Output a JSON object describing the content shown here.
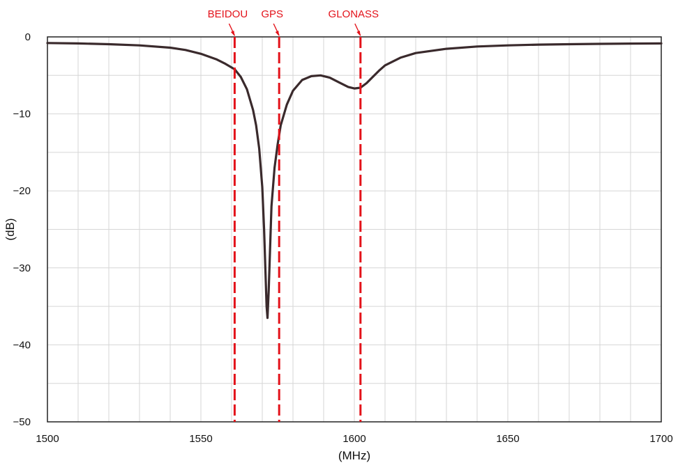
{
  "chart_data": {
    "type": "line",
    "title": "",
    "xlabel": "(MHz)",
    "ylabel": "(dB)",
    "xlim": [
      1500,
      1700
    ],
    "ylim": [
      -50,
      0
    ],
    "grid": true,
    "x_ticks": [
      {
        "value": 1500,
        "label": "1500"
      },
      {
        "value": 1550,
        "label": "1550"
      },
      {
        "value": 1600,
        "label": "1600"
      },
      {
        "value": 1650,
        "label": "1650"
      },
      {
        "value": 1700,
        "label": "1700"
      }
    ],
    "y_ticks": [
      {
        "value": 0,
        "label": "0"
      },
      {
        "value": -10,
        "label": "−10"
      },
      {
        "value": -20,
        "label": "−20"
      },
      {
        "value": -30,
        "label": "−30"
      },
      {
        "value": -40,
        "label": "−40"
      },
      {
        "value": -50,
        "label": "−50"
      }
    ],
    "series": [
      {
        "color": "#3a2a2c",
        "points": [
          [
            1500,
            -0.8
          ],
          [
            1510,
            -0.85
          ],
          [
            1520,
            -0.95
          ],
          [
            1530,
            -1.1
          ],
          [
            1540,
            -1.4
          ],
          [
            1545,
            -1.7
          ],
          [
            1550,
            -2.2
          ],
          [
            1555,
            -2.9
          ],
          [
            1558,
            -3.5
          ],
          [
            1561,
            -4.2
          ],
          [
            1563,
            -5.2
          ],
          [
            1565,
            -6.8
          ],
          [
            1567,
            -9.5
          ],
          [
            1568,
            -11.5
          ],
          [
            1569,
            -14.5
          ],
          [
            1570,
            -19.5
          ],
          [
            1570.6,
            -25
          ],
          [
            1571,
            -30
          ],
          [
            1571.4,
            -35
          ],
          [
            1571.7,
            -36.5
          ],
          [
            1572.1,
            -33
          ],
          [
            1572.5,
            -28
          ],
          [
            1573,
            -22
          ],
          [
            1574,
            -17
          ],
          [
            1575,
            -14
          ],
          [
            1576,
            -11.5
          ],
          [
            1578,
            -8.8
          ],
          [
            1580,
            -7.0
          ],
          [
            1583,
            -5.6
          ],
          [
            1586,
            -5.1
          ],
          [
            1589,
            -5.0
          ],
          [
            1592,
            -5.3
          ],
          [
            1595,
            -5.9
          ],
          [
            1598,
            -6.5
          ],
          [
            1600,
            -6.7
          ],
          [
            1602,
            -6.6
          ],
          [
            1604,
            -6.0
          ],
          [
            1606,
            -5.2
          ],
          [
            1608,
            -4.4
          ],
          [
            1610,
            -3.7
          ],
          [
            1615,
            -2.7
          ],
          [
            1620,
            -2.1
          ],
          [
            1630,
            -1.55
          ],
          [
            1640,
            -1.25
          ],
          [
            1650,
            -1.1
          ],
          [
            1660,
            -1.0
          ],
          [
            1670,
            -0.95
          ],
          [
            1680,
            -0.9
          ],
          [
            1690,
            -0.87
          ],
          [
            1700,
            -0.85
          ]
        ]
      }
    ],
    "markers": [
      {
        "label": "BEIDOU",
        "x": 1561,
        "color": "#e3121a"
      },
      {
        "label": "GPS",
        "x": 1575.5,
        "color": "#e3121a"
      },
      {
        "label": "GLONASS",
        "x": 1602,
        "color": "#e3121a"
      }
    ]
  }
}
